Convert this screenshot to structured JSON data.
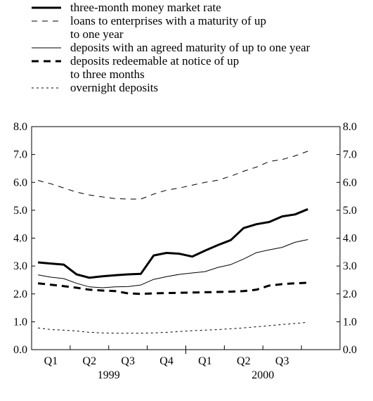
{
  "chart_data": {
    "type": "line",
    "title": "",
    "xlabel": "",
    "ylabel": "",
    "ylim": [
      0.0,
      8.0
    ],
    "yticks": [
      "0.0",
      "1.0",
      "2.0",
      "3.0",
      "4.0",
      "5.0",
      "6.0",
      "7.0",
      "8.0"
    ],
    "ytick_values": [
      0,
      1,
      2,
      3,
      4,
      5,
      6,
      7,
      8
    ],
    "y_axis_sides": "both",
    "grid": false,
    "legend_position": "top-left",
    "x_month_index": [
      0,
      1,
      2,
      3,
      4,
      5,
      6,
      7,
      8,
      9,
      10,
      11,
      12,
      13,
      14,
      15,
      16,
      17,
      18,
      19,
      20,
      21,
      22,
      23
    ],
    "quarters": [
      "Q1",
      "Q2",
      "Q3",
      "Q4",
      "Q1",
      "Q2",
      "Q3"
    ],
    "years": [
      "1999",
      "2000"
    ],
    "series": [
      {
        "name": "three-month money market rate",
        "style": "thick-solid",
        "values": [
          3.13,
          3.09,
          3.05,
          2.7,
          2.58,
          2.63,
          2.67,
          2.7,
          2.72,
          3.38,
          3.47,
          3.44,
          3.34,
          3.55,
          3.75,
          3.93,
          4.36,
          4.5,
          4.58,
          4.78,
          4.85,
          5.04,
          null,
          null
        ]
      },
      {
        "name": "loans to enterprises with a maturity of up to one year",
        "style": "thin-dashed",
        "values": [
          6.07,
          5.95,
          5.8,
          5.65,
          5.55,
          5.48,
          5.42,
          5.4,
          5.4,
          5.58,
          5.72,
          5.8,
          5.9,
          6.0,
          6.08,
          6.22,
          6.4,
          6.55,
          6.75,
          6.82,
          6.95,
          7.12,
          null,
          null
        ]
      },
      {
        "name": "deposits with an agreed maturity of up to one year",
        "style": "thin-solid",
        "values": [
          2.68,
          2.6,
          2.55,
          2.38,
          2.25,
          2.22,
          2.25,
          2.26,
          2.32,
          2.52,
          2.62,
          2.7,
          2.75,
          2.8,
          2.95,
          3.05,
          3.25,
          3.48,
          3.58,
          3.67,
          3.85,
          3.95,
          null,
          null
        ]
      },
      {
        "name": "deposits redeemable at notice of up to three months",
        "style": "thick-dashed",
        "values": [
          2.38,
          2.33,
          2.28,
          2.22,
          2.15,
          2.12,
          2.1,
          2.02,
          2.0,
          2.02,
          2.03,
          2.04,
          2.05,
          2.06,
          2.07,
          2.08,
          2.1,
          2.15,
          2.3,
          2.35,
          2.38,
          2.4,
          null,
          null
        ]
      },
      {
        "name": "overnight deposits",
        "style": "dotted",
        "values": [
          0.78,
          0.72,
          0.7,
          0.67,
          0.62,
          0.6,
          0.59,
          0.59,
          0.59,
          0.6,
          0.62,
          0.65,
          0.68,
          0.7,
          0.72,
          0.75,
          0.78,
          0.82,
          0.86,
          0.9,
          0.94,
          0.98,
          null,
          null
        ]
      }
    ],
    "legend_lines": [
      [
        "three-month money market rate"
      ],
      [
        "loans to enterprises with a maturity of up",
        "to one year"
      ],
      [
        "deposits with an agreed maturity of up to one year"
      ],
      [
        "deposits redeemable at notice of up",
        "to three months"
      ],
      [
        "overnight deposits"
      ]
    ]
  }
}
